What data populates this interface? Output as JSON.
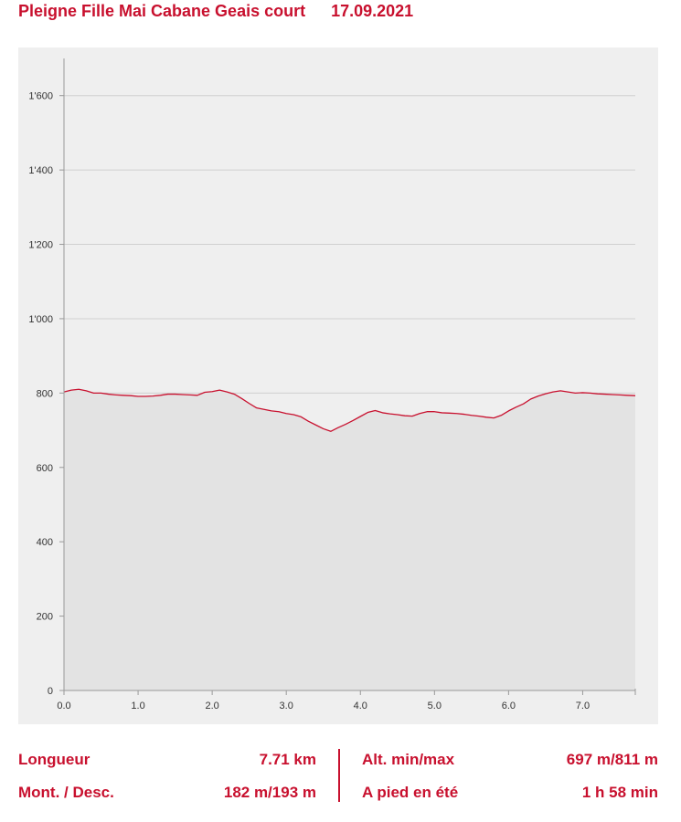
{
  "header": {
    "title": "Pleigne Fille Mai Cabane Geais court",
    "date": "17.09.2021"
  },
  "colors": {
    "accent": "#c8102e",
    "chart_bg": "#efefef",
    "area_fill": "#e3e3e3",
    "grid": "#d0d0d0"
  },
  "chart_data": {
    "type": "area",
    "title": "",
    "xlabel": "",
    "ylabel": "",
    "xlim": [
      0,
      7.71
    ],
    "ylim": [
      0,
      1700
    ],
    "x_ticks": [
      0,
      1,
      2,
      3,
      4,
      5,
      6,
      7
    ],
    "x_tick_labels": [
      "0.0",
      "1.0",
      "2.0",
      "3.0",
      "4.0",
      "5.0",
      "6.0",
      "7.0"
    ],
    "y_ticks": [
      0,
      200,
      400,
      600,
      800,
      1000,
      1200,
      1400,
      1600
    ],
    "y_tick_labels": [
      "0",
      "200",
      "400",
      "600",
      "800",
      "1'000",
      "1'200",
      "1'400",
      "1'600"
    ],
    "grid": true,
    "series": [
      {
        "x": [
          0.0,
          0.1,
          0.2,
          0.3,
          0.4,
          0.5,
          0.6,
          0.7,
          0.8,
          0.9,
          1.0,
          1.1,
          1.2,
          1.3,
          1.4,
          1.5,
          1.6,
          1.7,
          1.8,
          1.9,
          2.0,
          2.1,
          2.2,
          2.3,
          2.4,
          2.5,
          2.6,
          2.7,
          2.8,
          2.9,
          3.0,
          3.1,
          3.2,
          3.3,
          3.4,
          3.5,
          3.6,
          3.7,
          3.8,
          3.9,
          4.0,
          4.1,
          4.2,
          4.3,
          4.4,
          4.5,
          4.6,
          4.7,
          4.8,
          4.9,
          5.0,
          5.1,
          5.2,
          5.3,
          5.4,
          5.5,
          5.6,
          5.7,
          5.8,
          5.9,
          6.0,
          6.1,
          6.2,
          6.3,
          6.4,
          6.5,
          6.6,
          6.7,
          6.8,
          6.9,
          7.0,
          7.1,
          7.2,
          7.3,
          7.4,
          7.5,
          7.6,
          7.71
        ],
        "values": [
          803,
          808,
          810,
          806,
          800,
          800,
          797,
          795,
          794,
          793,
          791,
          791,
          792,
          794,
          797,
          797,
          796,
          795,
          794,
          802,
          804,
          808,
          803,
          797,
          785,
          772,
          760,
          756,
          752,
          750,
          745,
          742,
          736,
          724,
          714,
          704,
          697,
          707,
          716,
          726,
          737,
          748,
          753,
          747,
          744,
          742,
          739,
          738,
          745,
          750,
          750,
          747,
          746,
          745,
          743,
          740,
          738,
          735,
          733,
          740,
          752,
          762,
          771,
          784,
          792,
          798,
          803,
          806,
          803,
          800,
          801,
          800,
          798,
          797,
          796,
          795,
          794,
          793
        ]
      }
    ]
  },
  "stats": {
    "left": [
      {
        "label": "Longueur",
        "value": "7.71 km"
      },
      {
        "label": "Mont. / Desc.",
        "value": "182 m/193 m"
      }
    ],
    "right": [
      {
        "label": "Alt. min/max",
        "value": "697 m/811 m"
      },
      {
        "label": "A pied en été",
        "value": "1 h 58 min"
      }
    ]
  }
}
